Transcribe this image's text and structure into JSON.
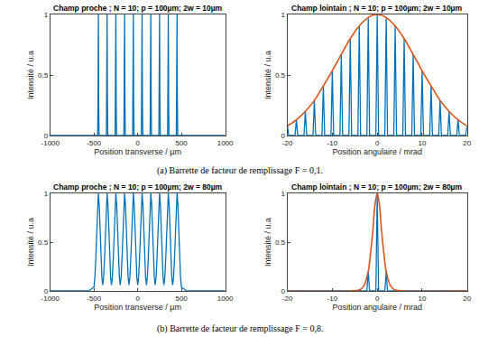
{
  "chart_data": [
    {
      "type": "line",
      "title": "Champ proche ; N = 10; p = 100µm; 2w = 10µm",
      "x_label": "Position transverse / µm",
      "y_label": "Intensité / u.a",
      "xlim": [
        -1000,
        1000
      ],
      "xticks": [
        -1000,
        -500,
        0,
        500,
        1000
      ],
      "ylim": [
        0,
        1
      ],
      "yticks": [
        0,
        0.5,
        1
      ],
      "series": [
        {
          "color": "#0072bd",
          "line_style": "solid",
          "x": [
            -1000,
            -458,
            -454,
            -450,
            -446,
            -442,
            -358,
            -354,
            -350,
            -346,
            -342,
            -258,
            -254,
            -250,
            -246,
            -242,
            -158,
            -154,
            -150,
            -146,
            -142,
            -58,
            -54,
            -50,
            -46,
            -42,
            42,
            46,
            50,
            54,
            58,
            142,
            146,
            150,
            154,
            158,
            242,
            246,
            250,
            254,
            258,
            342,
            346,
            350,
            354,
            358,
            442,
            446,
            450,
            454,
            458,
            1000
          ],
          "values": [
            0,
            0,
            0.28,
            1,
            0.28,
            0,
            0,
            0.28,
            1,
            0.28,
            0,
            0,
            0.28,
            1,
            0.28,
            0,
            0,
            0.28,
            1,
            0.28,
            0,
            0,
            0.28,
            1,
            0.28,
            0,
            0,
            0.28,
            1,
            0.28,
            0,
            0,
            0.28,
            1,
            0.28,
            0,
            0,
            0.28,
            1,
            0.28,
            0,
            0,
            0.28,
            1,
            0.28,
            0,
            0,
            0.28,
            1,
            0.28,
            0,
            0
          ]
        }
      ]
    },
    {
      "type": "line",
      "title": "Champ lointain ; N = 10; p = 100µm; 2w = 10µm",
      "x_label": "Position angulaire / mrad",
      "y_label": "Intensité / u.a",
      "xlim": [
        -20,
        20
      ],
      "xticks": [
        -20,
        -10,
        0,
        10,
        20
      ],
      "ylim": [
        0,
        1
      ],
      "yticks": [
        0,
        0.5,
        1
      ],
      "series": [
        {
          "color": "#0072bd",
          "line_style": "solid",
          "x": [
            -20.3,
            -20,
            -19.7,
            -18.3,
            -18,
            -17.7,
            -16.3,
            -16,
            -15.7,
            -14.3,
            -14,
            -13.7,
            -12.3,
            -12,
            -11.7,
            -10.3,
            -10,
            -9.7,
            -8.3,
            -8,
            -7.7,
            -6.3,
            -6,
            -5.7,
            -4.3,
            -4,
            -3.7,
            -2.3,
            -2,
            -1.7,
            -0.3,
            0,
            0.3,
            1.7,
            2,
            2.3,
            3.7,
            4,
            4.3,
            5.7,
            6,
            6.3,
            7.7,
            8,
            8.3,
            9.7,
            10,
            10.3,
            11.7,
            12,
            12.3,
            13.7,
            14,
            14.3,
            15.7,
            16,
            16.3,
            17.7,
            18,
            18.3,
            19.7,
            20,
            20.3
          ],
          "values": [
            0,
            0.08,
            0,
            0,
            0.13,
            0,
            0,
            0.2,
            0,
            0,
            0.29,
            0,
            0,
            0.41,
            0,
            0,
            0.535,
            0,
            0,
            0.67,
            0,
            0,
            0.8,
            0,
            0,
            0.905,
            0,
            0,
            0.975,
            0,
            0,
            1,
            0,
            0,
            0.975,
            0,
            0,
            0.905,
            0,
            0,
            0.8,
            0,
            0,
            0.67,
            0,
            0,
            0.535,
            0,
            0,
            0.41,
            0,
            0,
            0.29,
            0,
            0,
            0.2,
            0,
            0,
            0.13,
            0,
            0,
            0.08,
            0
          ]
        },
        {
          "color": "#d95319",
          "line_style": "smooth",
          "x": [
            -20,
            -18,
            -16,
            -14,
            -12,
            -10,
            -8,
            -6,
            -4,
            -2,
            0,
            2,
            4,
            6,
            8,
            10,
            12,
            14,
            16,
            18,
            20
          ],
          "values": [
            0.08,
            0.13,
            0.2,
            0.29,
            0.41,
            0.535,
            0.67,
            0.8,
            0.905,
            0.975,
            1,
            0.975,
            0.905,
            0.8,
            0.67,
            0.535,
            0.41,
            0.29,
            0.2,
            0.13,
            0.08
          ]
        }
      ]
    },
    {
      "type": "line",
      "title": "Champ proche ; N = 10; p = 100µm; 2w = 80µm",
      "x_label": "Position transverse / µm",
      "y_label": "Intensité / u.a",
      "xlim": [
        -1000,
        1000
      ],
      "xticks": [
        -1000,
        -500,
        0,
        500,
        1000
      ],
      "ylim": [
        0,
        1
      ],
      "yticks": [
        0,
        0.5,
        1
      ],
      "series": [
        {
          "color": "#0072bd",
          "line_style": "solid",
          "x": [
            -1000,
            -560,
            -500,
            -490,
            -480,
            -470,
            -460,
            -450,
            -440,
            -430,
            -420,
            -410,
            -400,
            -390,
            -380,
            -370,
            -360,
            -350,
            -340,
            -330,
            -320,
            -310,
            -300,
            -290,
            -280,
            -270,
            -260,
            -250,
            -240,
            -230,
            -220,
            -210,
            -200,
            -190,
            -180,
            -170,
            -160,
            -150,
            -140,
            -130,
            -120,
            -110,
            -100,
            -90,
            -80,
            -70,
            -60,
            -50,
            -40,
            -30,
            -20,
            -10,
            0,
            10,
            20,
            30,
            40,
            50,
            60,
            70,
            80,
            90,
            100,
            110,
            120,
            130,
            140,
            150,
            160,
            170,
            180,
            190,
            200,
            210,
            220,
            230,
            240,
            250,
            260,
            270,
            280,
            290,
            300,
            310,
            320,
            330,
            340,
            350,
            360,
            370,
            380,
            390,
            400,
            410,
            420,
            430,
            440,
            450,
            460,
            470,
            480,
            490,
            500,
            560,
            1000
          ],
          "values": [
            0,
            0,
            0.04,
            0.14,
            0.32,
            0.61,
            0.88,
            1,
            0.88,
            0.61,
            0.32,
            0.14,
            0.06,
            0.14,
            0.32,
            0.61,
            0.88,
            1,
            0.88,
            0.61,
            0.32,
            0.14,
            0.06,
            0.14,
            0.32,
            0.61,
            0.88,
            1,
            0.88,
            0.61,
            0.32,
            0.14,
            0.06,
            0.14,
            0.32,
            0.61,
            0.88,
            1,
            0.88,
            0.61,
            0.32,
            0.14,
            0.06,
            0.14,
            0.32,
            0.61,
            0.88,
            1,
            0.88,
            0.61,
            0.32,
            0.14,
            0.06,
            0.14,
            0.32,
            0.61,
            0.88,
            1,
            0.88,
            0.61,
            0.32,
            0.14,
            0.06,
            0.14,
            0.32,
            0.61,
            0.88,
            1,
            0.88,
            0.61,
            0.32,
            0.14,
            0.06,
            0.14,
            0.32,
            0.61,
            0.88,
            1,
            0.88,
            0.61,
            0.32,
            0.14,
            0.06,
            0.14,
            0.32,
            0.61,
            0.88,
            1,
            0.88,
            0.61,
            0.32,
            0.14,
            0.06,
            0.14,
            0.32,
            0.61,
            0.88,
            1,
            0.88,
            0.61,
            0.32,
            0.14,
            0.04,
            0,
            0
          ]
        }
      ]
    },
    {
      "type": "line",
      "title": "Champ lointain ; N = 10; p = 100µm; 2w = 80µm",
      "x_label": "Position angulaire / mrad",
      "y_label": "Intensité / u.a",
      "xlim": [
        -20,
        20
      ],
      "xticks": [
        -20,
        -10,
        0,
        10,
        20
      ],
      "ylim": [
        0,
        1
      ],
      "yticks": [
        0,
        0.5,
        1
      ],
      "series": [
        {
          "color": "#0072bd",
          "line_style": "solid",
          "x": [
            -20,
            -4.3,
            -4,
            -3.7,
            -2.3,
            -2,
            -1.7,
            -0.3,
            0,
            0.3,
            1.7,
            2,
            2.3,
            3.7,
            4,
            4.3,
            20
          ],
          "values": [
            0,
            0,
            0.01,
            0,
            0,
            0.2,
            0,
            0,
            1,
            0,
            0,
            0.2,
            0,
            0,
            0.01,
            0,
            0
          ]
        },
        {
          "color": "#d95319",
          "line_style": "smooth",
          "x": [
            -20,
            -6,
            -4,
            -3,
            -2,
            -1.5,
            -1,
            -0.5,
            0,
            0.5,
            1,
            1.5,
            2,
            3,
            4,
            6,
            20
          ],
          "values": [
            0,
            0,
            0.01,
            0.05,
            0.2,
            0.38,
            0.6,
            0.88,
            1,
            0.88,
            0.6,
            0.38,
            0.2,
            0.05,
            0.01,
            0,
            0
          ]
        }
      ]
    }
  ],
  "captions": [
    "(a) Barrette de facteur de remplissage F = 0,1.",
    "(b) Barrette de facteur de remplissage F = 0,8."
  ]
}
